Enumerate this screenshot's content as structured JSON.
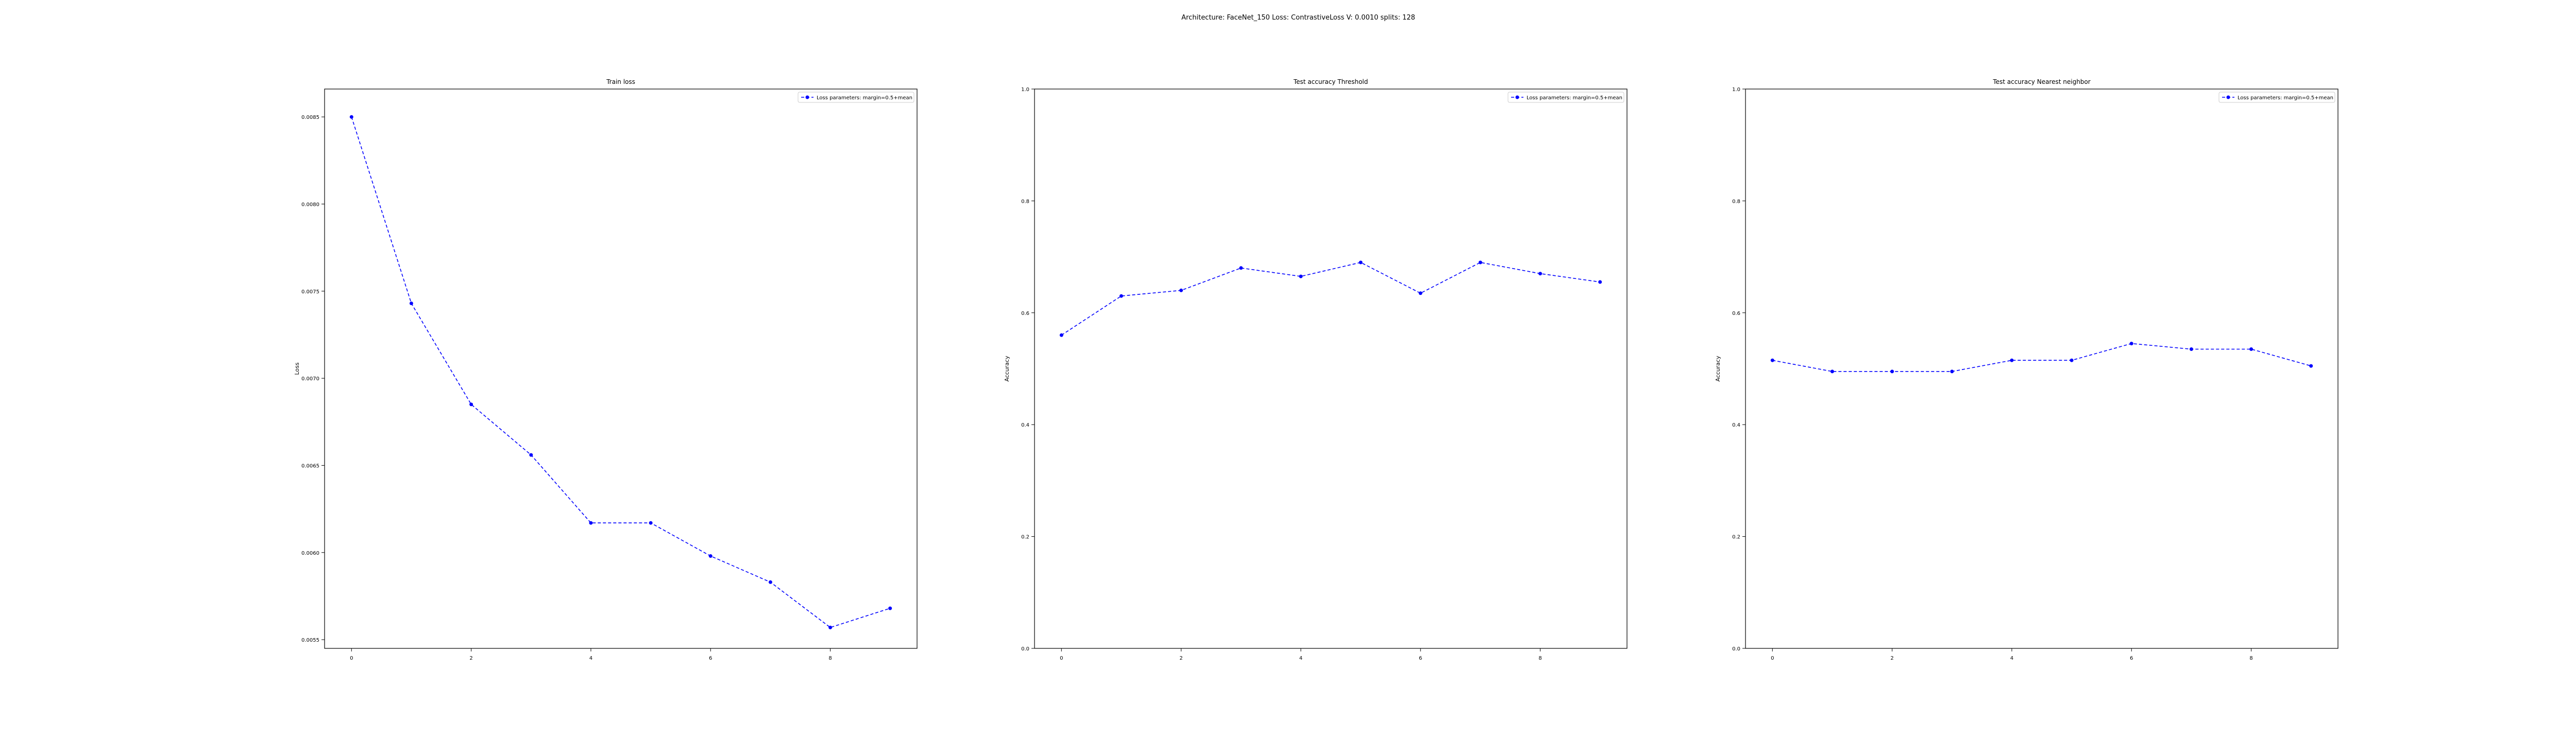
{
  "suptitle": "Architecture: FaceNet_150 Loss: ContrastiveLoss V: 0.0010 splits: 128",
  "colors": {
    "series": "#0000ff",
    "axes": "#000000",
    "legend_border": "#cccccc"
  },
  "chart_data": [
    {
      "type": "line",
      "title": "Train loss",
      "xlabel": "",
      "ylabel": "Loss",
      "x": [
        0,
        1,
        2,
        3,
        4,
        5,
        6,
        7,
        8,
        9
      ],
      "xlim": [
        -0.45,
        9.45
      ],
      "ylim": [
        0.00545,
        0.00866
      ],
      "xticks": [
        0,
        2,
        4,
        6,
        8
      ],
      "yticks": [
        0.0055,
        0.006,
        0.0065,
        0.007,
        0.0075,
        0.008,
        0.0085
      ],
      "ytick_labels": [
        "0.0055",
        "0.0060",
        "0.0065",
        "0.0070",
        "0.0075",
        "0.0080",
        "0.0085"
      ],
      "legend": "top-right",
      "grid": false,
      "series": [
        {
          "name": "Loss parameters: margin=0.5+mean",
          "values": [
            0.0085,
            0.00743,
            0.00685,
            0.00656,
            0.00617,
            0.00617,
            0.00598,
            0.00583,
            0.00557,
            0.00568
          ],
          "style": "dashed",
          "marker": "dot"
        }
      ]
    },
    {
      "type": "line",
      "title": "Test accuracy Threshold",
      "xlabel": "",
      "ylabel": "Accuracy",
      "x": [
        0,
        1,
        2,
        3,
        4,
        5,
        6,
        7,
        8,
        9
      ],
      "xlim": [
        -0.45,
        9.45
      ],
      "ylim": [
        0.0,
        1.0
      ],
      "xticks": [
        0,
        2,
        4,
        6,
        8
      ],
      "yticks": [
        0.0,
        0.2,
        0.4,
        0.6,
        0.8,
        1.0
      ],
      "ytick_labels": [
        "0.0",
        "0.2",
        "0.4",
        "0.6",
        "0.8",
        "1.0"
      ],
      "legend": "top-right",
      "grid": false,
      "series": [
        {
          "name": "Loss parameters: margin=0.5+mean",
          "values": [
            0.56,
            0.63,
            0.64,
            0.68,
            0.665,
            0.69,
            0.635,
            0.69,
            0.67,
            0.655
          ],
          "style": "dashed",
          "marker": "dot"
        }
      ]
    },
    {
      "type": "line",
      "title": "Test accuracy Nearest neighbor",
      "xlabel": "",
      "ylabel": "Accuracy",
      "x": [
        0,
        1,
        2,
        3,
        4,
        5,
        6,
        7,
        8,
        9
      ],
      "xlim": [
        -0.45,
        9.45
      ],
      "ylim": [
        0.0,
        1.0
      ],
      "xticks": [
        0,
        2,
        4,
        6,
        8
      ],
      "yticks": [
        0.0,
        0.2,
        0.4,
        0.6,
        0.8,
        1.0
      ],
      "ytick_labels": [
        "0.0",
        "0.2",
        "0.4",
        "0.6",
        "0.8",
        "1.0"
      ],
      "legend": "top-right",
      "grid": false,
      "series": [
        {
          "name": "Loss parameters: margin=0.5+mean",
          "values": [
            0.515,
            0.495,
            0.495,
            0.495,
            0.515,
            0.515,
            0.545,
            0.535,
            0.535,
            0.505
          ],
          "style": "dashed",
          "marker": "dot"
        }
      ]
    }
  ]
}
